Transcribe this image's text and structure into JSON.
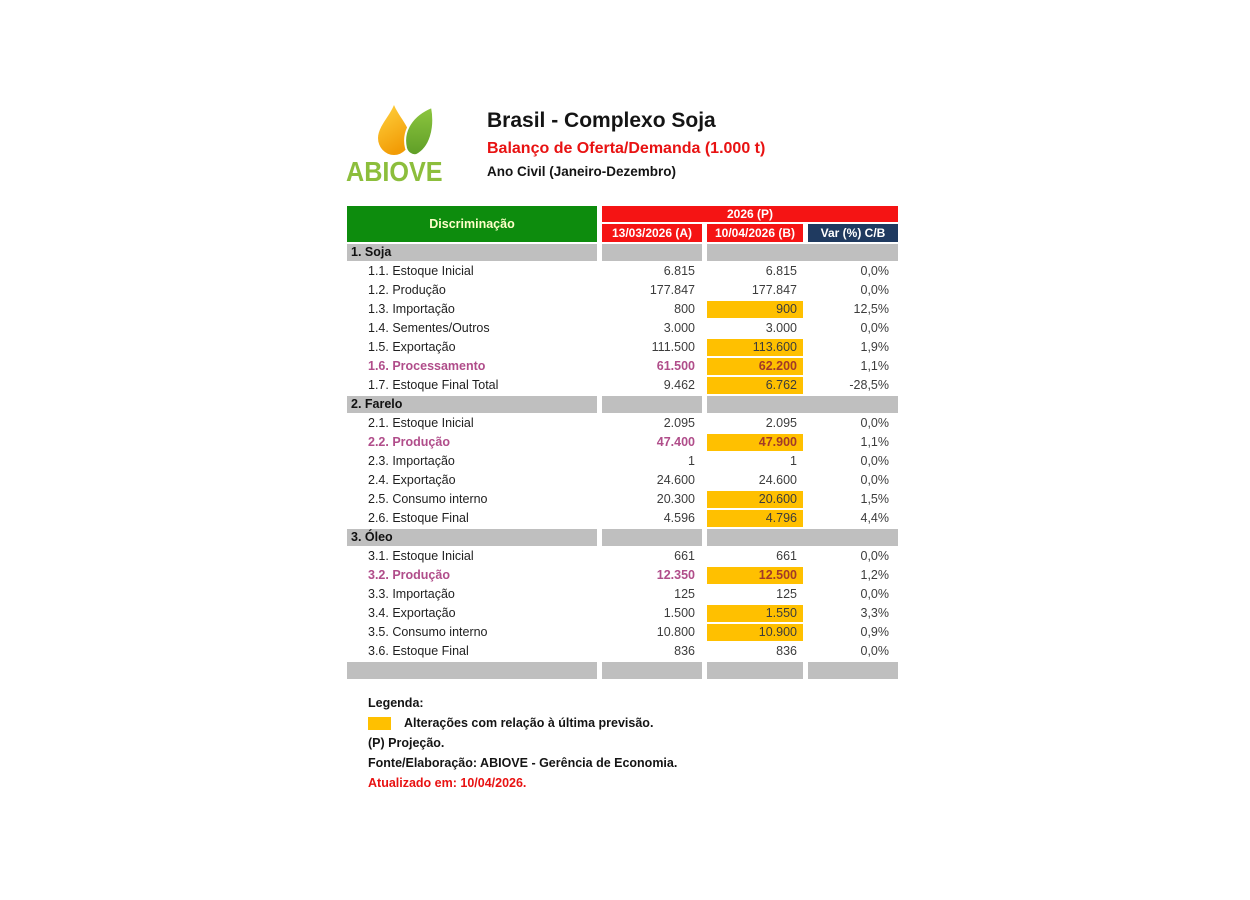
{
  "header": {
    "logo_text": "ABIOVE",
    "title": "Brasil - Complexo Soja",
    "subtitle": "Balanço de Oferta/Demanda (1.000 t)",
    "period": "Ano Civil (Janeiro-Dezembro)"
  },
  "table": {
    "label_header": "Discriminação",
    "group_header": "2026 (P)",
    "columns": [
      "13/03/2026 (A)",
      "10/04/2026 (B)",
      "Var (%) C/B"
    ],
    "sections": [
      {
        "title": "1. Soja",
        "rows": [
          {
            "label": "1.1. Estoque Inicial",
            "a": "6.815",
            "b": "6.815",
            "var": "0,0%",
            "highlight": false,
            "accent": false
          },
          {
            "label": "1.2. Produção",
            "a": "177.847",
            "b": "177.847",
            "var": "0,0%",
            "highlight": false,
            "accent": false
          },
          {
            "label": "1.3. Importação",
            "a": "800",
            "b": "900",
            "var": "12,5%",
            "highlight": true,
            "accent": false
          },
          {
            "label": "1.4. Sementes/Outros",
            "a": "3.000",
            "b": "3.000",
            "var": "0,0%",
            "highlight": false,
            "accent": false
          },
          {
            "label": "1.5. Exportação",
            "a": "111.500",
            "b": "113.600",
            "var": "1,9%",
            "highlight": true,
            "accent": false
          },
          {
            "label": "1.6. Processamento",
            "a": "61.500",
            "b": "62.200",
            "var": "1,1%",
            "highlight": true,
            "accent": true
          },
          {
            "label": "1.7. Estoque Final Total",
            "a": "9.462",
            "b": "6.762",
            "var": "-28,5%",
            "highlight": true,
            "accent": false
          }
        ]
      },
      {
        "title": "2. Farelo",
        "rows": [
          {
            "label": "2.1. Estoque Inicial",
            "a": "2.095",
            "b": "2.095",
            "var": "0,0%",
            "highlight": false,
            "accent": false
          },
          {
            "label": "2.2. Produção",
            "a": "47.400",
            "b": "47.900",
            "var": "1,1%",
            "highlight": true,
            "accent": true
          },
          {
            "label": "2.3. Importação",
            "a": "1",
            "b": "1",
            "var": "0,0%",
            "highlight": false,
            "accent": false
          },
          {
            "label": "2.4. Exportação",
            "a": "24.600",
            "b": "24.600",
            "var": "0,0%",
            "highlight": false,
            "accent": false
          },
          {
            "label": "2.5. Consumo interno",
            "a": "20.300",
            "b": "20.600",
            "var": "1,5%",
            "highlight": true,
            "accent": false
          },
          {
            "label": "2.6. Estoque Final",
            "a": "4.596",
            "b": "4.796",
            "var": "4,4%",
            "highlight": true,
            "accent": false
          }
        ]
      },
      {
        "title": "3. Óleo",
        "rows": [
          {
            "label": "3.1. Estoque Inicial",
            "a": "661",
            "b": "661",
            "var": "0,0%",
            "highlight": false,
            "accent": false
          },
          {
            "label": "3.2. Produção",
            "a": "12.350",
            "b": "12.500",
            "var": "1,2%",
            "highlight": true,
            "accent": true
          },
          {
            "label": "3.3. Importação",
            "a": "125",
            "b": "125",
            "var": "0,0%",
            "highlight": false,
            "accent": false
          },
          {
            "label": "3.4. Exportação",
            "a": "1.500",
            "b": "1.550",
            "var": "3,3%",
            "highlight": true,
            "accent": false
          },
          {
            "label": "3.5. Consumo interno",
            "a": "10.800",
            "b": "10.900",
            "var": "0,9%",
            "highlight": true,
            "accent": false
          },
          {
            "label": "3.6. Estoque Final",
            "a": "836",
            "b": "836",
            "var": "0,0%",
            "highlight": false,
            "accent": false
          }
        ]
      }
    ]
  },
  "legend": {
    "title": "Legenda:",
    "highlight_note": "Alterações com relação à última previsão.",
    "projection_note": "(P) Projeção.",
    "source": "Fonte/Elaboração: ABIOVE - Gerência de Economia.",
    "updated": "Atualizado em: 10/04/2026."
  },
  "colors": {
    "green_header": "#0d8c0d",
    "red_band": "#f51414",
    "navy": "#1f3a60",
    "gray_bar": "#bfbfbf",
    "highlight": "#ffc000",
    "accent_text": "#b04d8a",
    "accent_on_highlight": "#a23a28",
    "red_text": "#e81212",
    "logo_green": "#8cbe3c"
  }
}
